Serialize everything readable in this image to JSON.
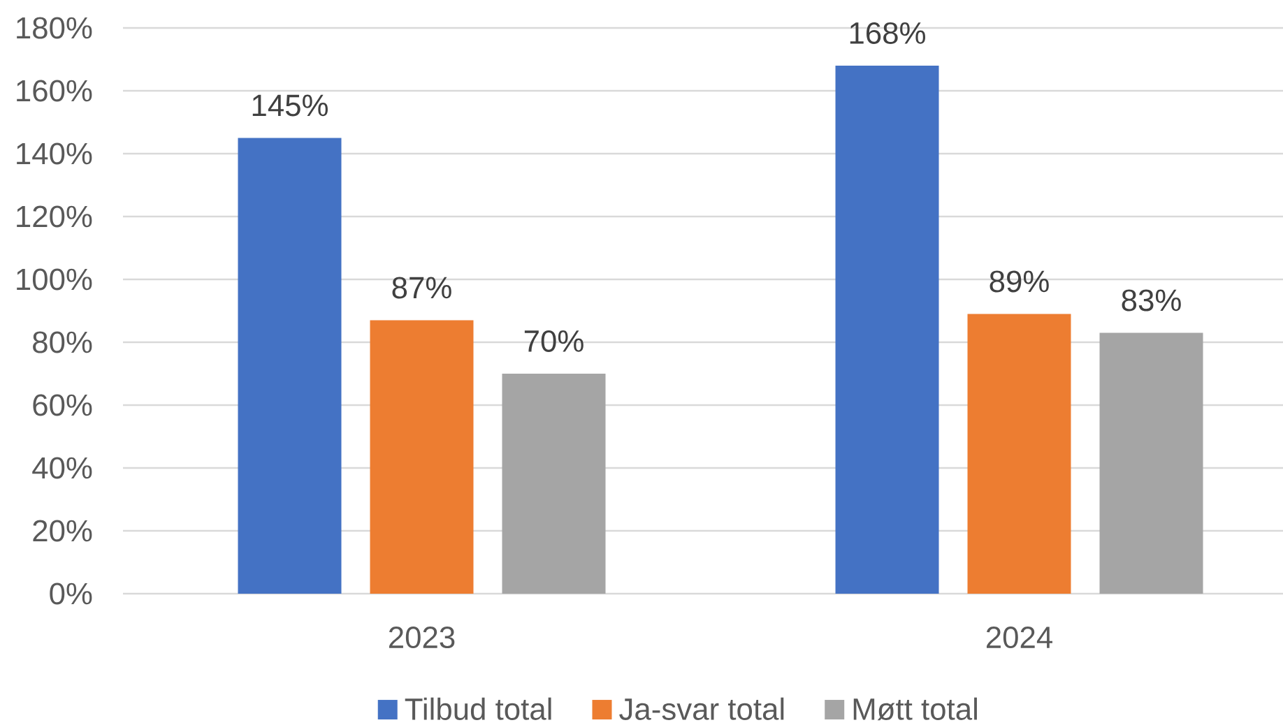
{
  "chart_data": {
    "type": "bar",
    "categories": [
      "2023",
      "2024"
    ],
    "series": [
      {
        "name": "Tilbud total",
        "color": "#4472c4",
        "values": [
          145,
          168
        ],
        "value_labels": [
          "145%",
          "168%"
        ]
      },
      {
        "name": "Ja-svar total",
        "color": "#ed7d31",
        "values": [
          87,
          89
        ],
        "value_labels": [
          "87%",
          "89%"
        ]
      },
      {
        "name": "Møtt total",
        "color": "#a5a5a5",
        "values": [
          70,
          83
        ],
        "value_labels": [
          "70%",
          "83%"
        ]
      }
    ],
    "ylim": [
      0,
      180
    ],
    "yticks": [
      {
        "value": 0,
        "label": "0%"
      },
      {
        "value": 20,
        "label": "20%"
      },
      {
        "value": 40,
        "label": "40%"
      },
      {
        "value": 60,
        "label": "60%"
      },
      {
        "value": 80,
        "label": "80%"
      },
      {
        "value": 100,
        "label": "100%"
      },
      {
        "value": 120,
        "label": "120%"
      },
      {
        "value": 140,
        "label": "140%"
      },
      {
        "value": 160,
        "label": "160%"
      },
      {
        "value": 180,
        "label": "180%"
      }
    ],
    "grid": "y",
    "legend": "bottom"
  }
}
